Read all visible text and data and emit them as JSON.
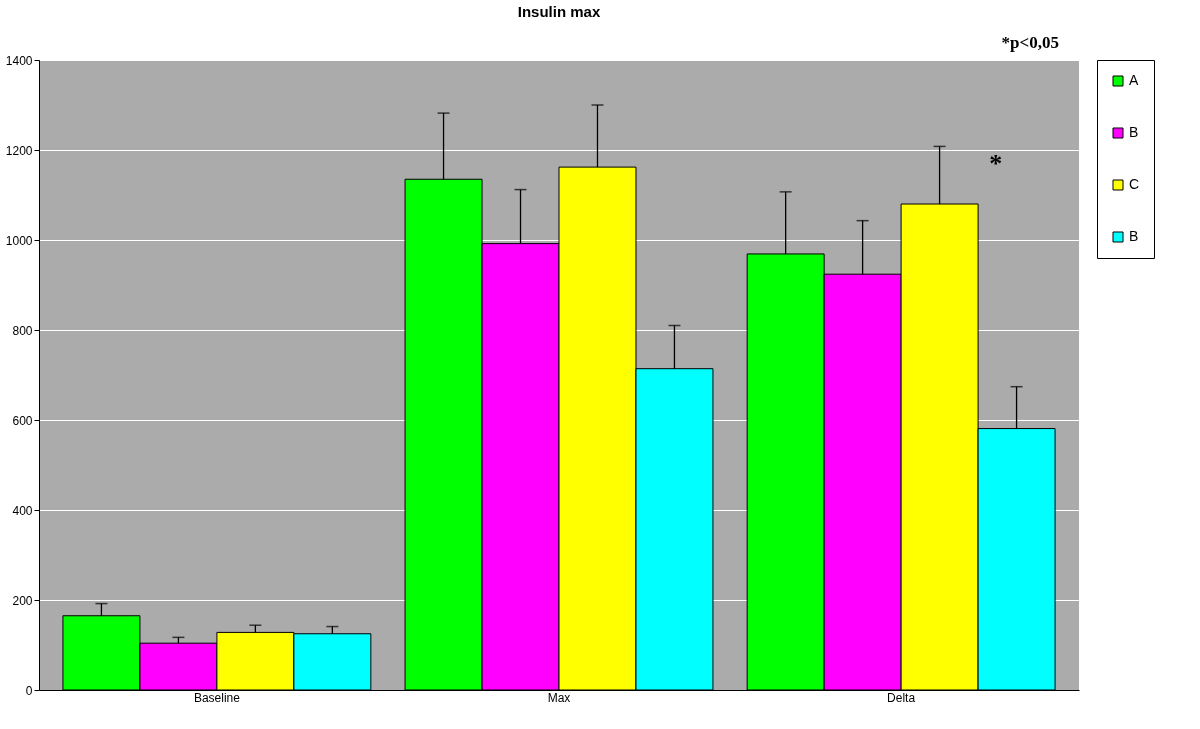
{
  "chart_data": {
    "type": "bar",
    "title": "Insulin max",
    "categories": [
      "Baseline",
      "Max",
      "Delta"
    ],
    "series": [
      {
        "name": "A",
        "color": "#00ff00",
        "values": [
          165,
          1135,
          969
        ],
        "errors": [
          27,
          147,
          138
        ]
      },
      {
        "name": "B",
        "color": "#ff00ff",
        "values": [
          104,
          992,
          924
        ],
        "errors": [
          13,
          120,
          119
        ]
      },
      {
        "name": "C",
        "color": "#ffff00",
        "values": [
          128,
          1162,
          1080
        ],
        "errors": [
          16,
          138,
          128
        ]
      },
      {
        "name": "B",
        "color": "#00ffff",
        "values": [
          125,
          714,
          581
        ],
        "errors": [
          16,
          96,
          93
        ]
      }
    ],
    "ylim": [
      0,
      1400
    ],
    "yticks": [
      0,
      200,
      400,
      600,
      800,
      1000,
      1200,
      1400
    ],
    "grid": "y",
    "legend": "right",
    "annotations": [
      "*p<0,05",
      "*"
    ]
  }
}
